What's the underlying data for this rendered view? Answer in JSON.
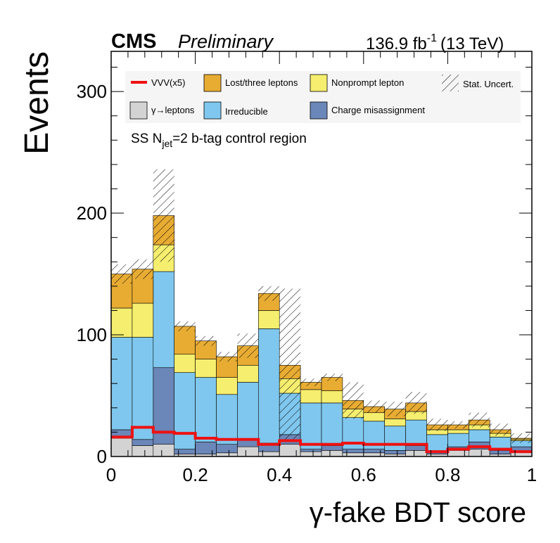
{
  "header": {
    "cms": "CMS",
    "preliminary": "Preliminary",
    "lumi_value": "136.9 fb",
    "lumi_exp": "-1",
    "energy": "(13 TeV)"
  },
  "region": {
    "prefix": "SS N",
    "sub": "jet",
    "suffix": "=2 b-tag control region"
  },
  "legend": {
    "vvv": "VVV(x5)",
    "lost": "Lost/three leptons",
    "nonprompt": "Nonprompt lepton",
    "stat": "Stat. Uncert.",
    "gamma": "γ→leptons",
    "irreducible": "Irreducible",
    "charge": "Charge misassignment"
  },
  "colors": {
    "gamma": "#d3d3d3",
    "charge": "#6b86b8",
    "irreducible": "#7fc7ee",
    "nonprompt": "#f5ee6e",
    "lost": "#e8ac33",
    "vvv": "#ee1111"
  },
  "chart_data": {
    "type": "bar",
    "stacked": true,
    "xlabel": "γ-fake BDT score",
    "ylabel": "Events",
    "xlim": [
      0,
      1
    ],
    "ylim": [
      0,
      333
    ],
    "bin_edges": [
      0,
      0.05,
      0.1,
      0.15,
      0.2,
      0.25,
      0.3,
      0.35,
      0.4,
      0.45,
      0.5,
      0.55,
      0.6,
      0.65,
      0.7,
      0.75,
      0.8,
      0.85,
      0.9,
      0.95,
      1.0
    ],
    "x_ticks": [
      "0",
      "0.2",
      "0.4",
      "0.6",
      "0.8",
      "1"
    ],
    "y_ticks": [
      "0",
      "100",
      "200",
      "300"
    ],
    "x_tick_values": [
      0,
      0.2,
      0.4,
      0.6,
      0.8,
      1
    ],
    "y_tick_values": [
      0,
      100,
      200,
      300
    ],
    "series": [
      {
        "name": "γ→leptons",
        "key": "gamma",
        "values": [
          15,
          9,
          10,
          2,
          2,
          3,
          8,
          4,
          10,
          4,
          5,
          3,
          3,
          2,
          5,
          2,
          5,
          6,
          2,
          4
        ]
      },
      {
        "name": "Charge misassignment",
        "key": "charge",
        "values": [
          7,
          5,
          63,
          4,
          10,
          7,
          6,
          7,
          8,
          2,
          4,
          3,
          3,
          3,
          4,
          2,
          3,
          6,
          3,
          4
        ]
      },
      {
        "name": "Irreducible",
        "key": "irreducible",
        "values": [
          76,
          84,
          79,
          63,
          53,
          41,
          47,
          94,
          34,
          38,
          35,
          26,
          23,
          20,
          21,
          14,
          11,
          10,
          11,
          5
        ]
      },
      {
        "name": "Nonprompt lepton",
        "key": "nonprompt",
        "values": [
          24,
          28,
          22,
          15,
          15,
          14,
          14,
          15,
          12,
          11,
          10,
          7,
          7,
          6,
          7,
          4,
          3,
          4,
          3,
          1
        ]
      },
      {
        "name": "Lost/three leptons",
        "key": "lost",
        "values": [
          28,
          28,
          24,
          23,
          15,
          17,
          16,
          14,
          11,
          6,
          11,
          7,
          5,
          8,
          7,
          4,
          4,
          4,
          3,
          1
        ]
      }
    ],
    "vvv": {
      "name": "VVV(x5)",
      "values": [
        16,
        24,
        20,
        19,
        15,
        14,
        14,
        10,
        13,
        10,
        10,
        11,
        10,
        10,
        10,
        4,
        6,
        8,
        6,
        4
      ]
    },
    "stat_uncert": [
      8,
      8,
      38,
      4,
      4,
      4,
      10,
      6,
      63,
      3,
      3,
      15,
      5,
      6,
      9,
      5,
      3,
      6,
      5,
      4
    ]
  }
}
